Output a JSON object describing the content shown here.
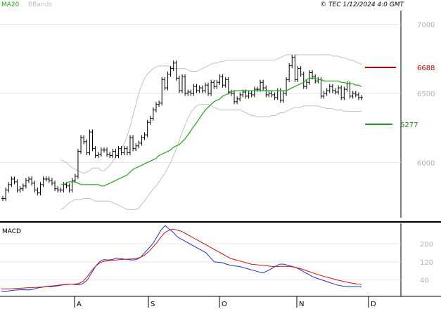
{
  "legend": {
    "ma_label": "MA20",
    "bb_label": "BBands"
  },
  "timestamp": "© TEC 1/12/2024 4:0 GMT",
  "macd_title": "MACD",
  "colors": {
    "price": "#000000",
    "ma": "#1aa81a",
    "bands": "#c0c0c0",
    "macd": "#2030c8",
    "signal": "#d01010",
    "resistance": "#c00000",
    "support": "#1a8a1a",
    "grid": "#e6e6e6",
    "axis_text": "#b0b0b0"
  },
  "chart_data": [
    {
      "type": "ohlc",
      "ylim": [
        5600,
        7100
      ],
      "y_ticks": [
        {
          "value": 7000,
          "label": "7000"
        },
        {
          "value": 6500,
          "label": "6500"
        },
        {
          "value": 6000,
          "label": "6000"
        }
      ],
      "x_ticks": [
        "A",
        "S",
        "O",
        "N",
        "D"
      ],
      "levels": [
        {
          "name": "resistance",
          "value": 6688,
          "label": "6688"
        },
        {
          "name": "support",
          "value": 6277,
          "label": "6277"
        }
      ],
      "close": [
        5740,
        5800,
        5840,
        5880,
        5860,
        5800,
        5810,
        5830,
        5870,
        5880,
        5850,
        5800,
        5780,
        5840,
        5880,
        5880,
        5870,
        5850,
        5810,
        5800,
        5800,
        5840,
        5830,
        5800,
        5870,
        5900,
        6080,
        6180,
        6150,
        6070,
        6220,
        6100,
        6050,
        6060,
        6090,
        6090,
        6060,
        6050,
        6080,
        6050,
        6100,
        6070,
        6100,
        6070,
        6180,
        6100,
        6120,
        6140,
        6180,
        6200,
        6290,
        6320,
        6380,
        6420,
        6430,
        6600,
        6540,
        6640,
        6680,
        6720,
        6610,
        6520,
        6620,
        6500,
        6510,
        6500,
        6550,
        6520,
        6540,
        6520,
        6560,
        6500,
        6580,
        6550,
        6580,
        6620,
        6560,
        6600,
        6510,
        6500,
        6440,
        6460,
        6490,
        6510,
        6480,
        6500,
        6490,
        6530,
        6530,
        6580,
        6540,
        6490,
        6500,
        6490,
        6470,
        6520,
        6450,
        6500,
        6600,
        6700,
        6760,
        6600,
        6680,
        6640,
        6550,
        6580,
        6650,
        6620,
        6590,
        6600,
        6480,
        6500,
        6520,
        6550,
        6520,
        6510,
        6540,
        6470,
        6530,
        6570,
        6480,
        6500,
        6490,
        6470,
        6470
      ],
      "ma20": [
        5840,
        5840,
        5850,
        5860,
        5860,
        5860,
        5850,
        5840,
        5840,
        5840,
        5840,
        5840,
        5840,
        5840,
        5830,
        5830,
        5840,
        5850,
        5860,
        5870,
        5880,
        5890,
        5900,
        5910,
        5930,
        5950,
        5960,
        5970,
        5980,
        5990,
        6000,
        6010,
        6020,
        6030,
        6050,
        6060,
        6070,
        6080,
        6090,
        6110,
        6120,
        6130,
        6150,
        6170,
        6200,
        6230,
        6260,
        6290,
        6320,
        6350,
        6380,
        6400,
        6420,
        6440,
        6450,
        6460,
        6480,
        6490,
        6500,
        6510,
        6520,
        6520,
        6520,
        6520,
        6520,
        6520,
        6520,
        6520,
        6520,
        6520,
        6520,
        6520,
        6520,
        6520,
        6520,
        6520,
        6520,
        6520,
        6520,
        6530,
        6540,
        6550,
        6560,
        6570,
        6580,
        6600,
        6610,
        6610,
        6610,
        6600,
        6600,
        6590,
        6590,
        6590,
        6590,
        6590,
        6590,
        6580,
        6580,
        6570,
        6570,
        6570,
        6560,
        6560,
        6550
      ],
      "bb_upper": [
        6020,
        6010,
        6000,
        5980,
        5960,
        5950,
        5940,
        5930,
        5920,
        5930,
        5940,
        5960,
        5960,
        5960,
        5940,
        5940,
        5960,
        5980,
        6010,
        6040,
        6070,
        6100,
        6140,
        6190,
        6260,
        6340,
        6420,
        6500,
        6560,
        6610,
        6640,
        6660,
        6680,
        6690,
        6700,
        6700,
        6700,
        6700,
        6690,
        6680,
        6680,
        6680,
        6680,
        6680,
        6670,
        6660,
        6660,
        6660,
        6670,
        6680,
        6690,
        6700,
        6710,
        6720,
        6720,
        6730,
        6730,
        6740,
        6740,
        6740,
        6740,
        6740,
        6740,
        6740,
        6740,
        6740,
        6740,
        6740,
        6740,
        6740,
        6740,
        6740,
        6740,
        6740,
        6740,
        6750,
        6760,
        6770,
        6780,
        6780,
        6780,
        6780,
        6780,
        6780,
        6780,
        6780,
        6780,
        6780,
        6780,
        6780,
        6780,
        6780,
        6780,
        6780,
        6770,
        6770,
        6770,
        6760,
        6760,
        6750,
        6740,
        6740,
        6730,
        6720,
        6710
      ],
      "bb_lower": [
        5660,
        5670,
        5690,
        5710,
        5720,
        5730,
        5730,
        5730,
        5740,
        5740,
        5740,
        5730,
        5720,
        5720,
        5720,
        5720,
        5720,
        5720,
        5710,
        5700,
        5690,
        5680,
        5670,
        5660,
        5660,
        5660,
        5660,
        5670,
        5700,
        5720,
        5750,
        5780,
        5810,
        5830,
        5860,
        5890,
        5920,
        5960,
        6000,
        6050,
        6100,
        6160,
        6220,
        6270,
        6320,
        6360,
        6390,
        6410,
        6420,
        6420,
        6420,
        6420,
        6410,
        6400,
        6390,
        6380,
        6380,
        6380,
        6380,
        6380,
        6380,
        6380,
        6380,
        6370,
        6360,
        6350,
        6340,
        6340,
        6330,
        6330,
        6330,
        6330,
        6330,
        6340,
        6340,
        6350,
        6360,
        6360,
        6370,
        6380,
        6390,
        6400,
        6400,
        6400,
        6410,
        6410,
        6410,
        6410,
        6410,
        6410,
        6400,
        6400,
        6390,
        6390,
        6390,
        6380,
        6380,
        6380,
        6370,
        6370,
        6370,
        6370,
        6370,
        6370,
        6370
      ]
    },
    {
      "type": "line",
      "title": "MACD",
      "ylim": [
        -20,
        290
      ],
      "y_ticks": [
        {
          "value": 200,
          "label": "200"
        },
        {
          "value": 120,
          "label": "120"
        },
        {
          "value": 40,
          "label": "40"
        }
      ],
      "series": [
        {
          "values": [
            -10,
            -12,
            -8,
            -5,
            -4,
            -3,
            -4,
            -4,
            0,
            5,
            8,
            10,
            10,
            12,
            15,
            18,
            20,
            22,
            20,
            18,
            25,
            40,
            70,
            100,
            120,
            130,
            128,
            130,
            135,
            135,
            132,
            130,
            128,
            130,
            140,
            160,
            180,
            200,
            230,
            260,
            280,
            265,
            250,
            230,
            220,
            210,
            200,
            190,
            180,
            170,
            160,
            140,
            120,
            118,
            116,
            110,
            105,
            102,
            100,
            95,
            90,
            85,
            80,
            75,
            72,
            80,
            90,
            100,
            110,
            110,
            105,
            100,
            95,
            85,
            75,
            65,
            55,
            48,
            42,
            36,
            30,
            24,
            18,
            14,
            12,
            10,
            10,
            10,
            10
          ]
        },
        {
          "values": [
            0,
            0,
            0,
            2,
            3,
            4,
            5,
            6,
            7,
            8,
            9,
            11,
            13,
            15,
            17,
            19,
            21,
            22,
            22,
            25,
            35,
            55,
            80,
            100,
            115,
            122,
            125,
            127,
            128,
            130,
            131,
            132,
            133,
            135,
            140,
            150,
            165,
            185,
            205,
            230,
            250,
            260,
            265,
            260,
            255,
            245,
            235,
            225,
            215,
            205,
            195,
            185,
            175,
            165,
            155,
            145,
            135,
            130,
            125,
            120,
            115,
            110,
            108,
            106,
            105,
            102,
            100,
            99,
            100,
            100,
            100,
            98,
            95,
            90,
            85,
            78,
            72,
            66,
            60,
            55,
            50,
            45,
            40,
            36,
            32,
            28,
            25,
            22,
            20
          ]
        }
      ]
    }
  ]
}
